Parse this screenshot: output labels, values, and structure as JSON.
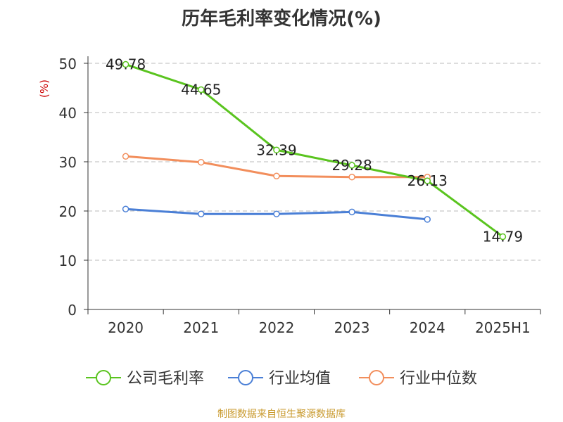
{
  "chart_data": {
    "type": "line",
    "title": "历年毛利率变化情况(%)",
    "ylabel": "(%)",
    "categories": [
      "2020",
      "2021",
      "2022",
      "2023",
      "2024",
      "2025H1"
    ],
    "ylim": [
      0,
      50
    ],
    "yticks": [
      0,
      10,
      20,
      30,
      40,
      50
    ],
    "grid": true,
    "legend_position": "bottom",
    "series": [
      {
        "name": "公司毛利率",
        "color": "#5ac41f",
        "values": [
          49.78,
          44.65,
          32.39,
          29.28,
          26.13,
          14.79
        ],
        "labels": [
          "49.78",
          "44.65",
          "32.39",
          "29.28",
          "26.13",
          "14.79"
        ]
      },
      {
        "name": "行业均值",
        "color": "#4a7fd6",
        "values": [
          20.4,
          19.4,
          19.4,
          19.8,
          18.3,
          null
        ]
      },
      {
        "name": "行业中位数",
        "color": "#f28e5c",
        "values": [
          31.1,
          29.9,
          27.1,
          26.9,
          26.9,
          null
        ]
      }
    ]
  },
  "source_note": "制图数据来自恒生聚源数据库",
  "colors": {
    "axis": "#333333",
    "grid": "#bbbbbb",
    "ylabel": "#cc0000",
    "source": "#c99a2e"
  }
}
